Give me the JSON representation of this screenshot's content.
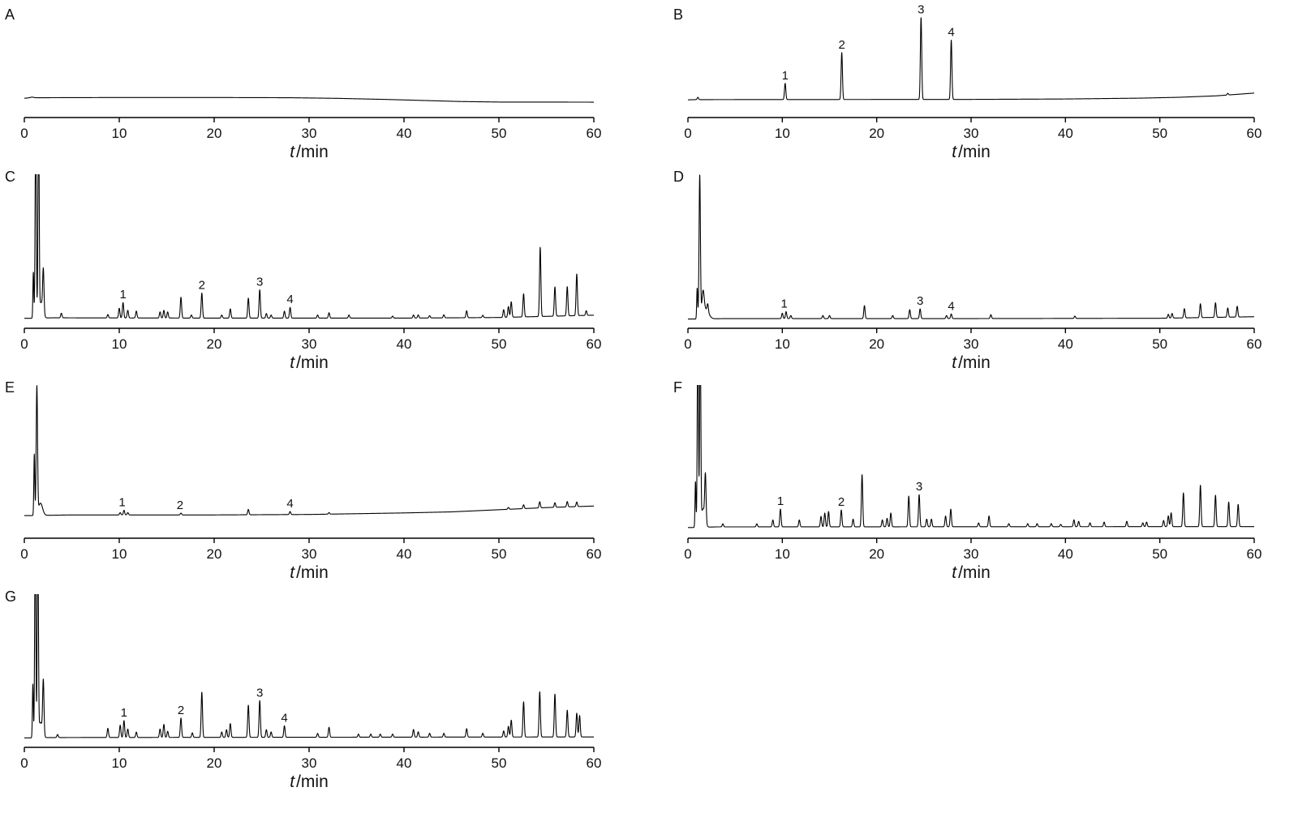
{
  "chart_data": [
    {
      "type": "line",
      "panel_label": "A",
      "xlabel_symbol": "t",
      "xlabel_unit": "/min",
      "xlim": [
        0,
        60
      ],
      "ylim": [
        0,
        100
      ],
      "x_ticks": [
        0,
        10,
        20,
        30,
        40,
        50,
        60
      ],
      "baseline": [
        [
          0,
          18.3
        ],
        [
          0.4,
          18.6
        ],
        [
          0.8,
          19.4
        ],
        [
          1.2,
          18.8
        ],
        [
          10,
          19.0
        ],
        [
          20,
          19.0
        ],
        [
          28,
          18.8
        ],
        [
          33,
          18.2
        ],
        [
          38,
          17.2
        ],
        [
          42,
          16.2
        ],
        [
          46,
          15.2
        ],
        [
          50,
          14.7
        ],
        [
          60,
          14.6
        ]
      ],
      "peaks": [],
      "peak_labels": []
    },
    {
      "type": "line",
      "panel_label": "B",
      "xlabel_symbol": "t",
      "xlabel_unit": "/min",
      "xlim": [
        0,
        60
      ],
      "ylim": [
        0,
        100
      ],
      "x_ticks": [
        0,
        10,
        20,
        30,
        40,
        50,
        60
      ],
      "baseline": [
        [
          0,
          16.8
        ],
        [
          1,
          17
        ],
        [
          30,
          17.2
        ],
        [
          40,
          17.6
        ],
        [
          48,
          18.4
        ],
        [
          52,
          19.2
        ],
        [
          56,
          20.6
        ],
        [
          60,
          23.2
        ]
      ],
      "peaks": [
        [
          1.05,
          2.2
        ],
        [
          10.3,
          15.4
        ],
        [
          16.3,
          44.6
        ],
        [
          24.7,
          77.7
        ],
        [
          27.9,
          56.2
        ],
        [
          57.2,
          1.6
        ]
      ],
      "peak_labels": [
        {
          "label": "1",
          "t": 10.3
        },
        {
          "label": "2",
          "t": 16.3
        },
        {
          "label": "3",
          "t": 24.7
        },
        {
          "label": "4",
          "t": 27.9
        }
      ]
    },
    {
      "type": "line",
      "panel_label": "C",
      "xlabel_symbol": "t",
      "xlabel_unit": "/min",
      "xlim": [
        0,
        60
      ],
      "ylim": [
        0,
        100
      ],
      "x_ticks": [
        0,
        10,
        20,
        30,
        40,
        50,
        60
      ],
      "baseline": [
        [
          0,
          6.5
        ],
        [
          0.9,
          6.5
        ],
        [
          3,
          6.8
        ],
        [
          20,
          6.6
        ],
        [
          40,
          6.6
        ],
        [
          50,
          7
        ],
        [
          60,
          8.5
        ]
      ],
      "peaks": [
        [
          0.95,
          30,
          0.05
        ],
        [
          1.2,
          140,
          0.06
        ],
        [
          1.5,
          140,
          0.06
        ],
        [
          1.75,
          10,
          0.2
        ],
        [
          2.0,
          28
        ],
        [
          3.9,
          3
        ],
        [
          8.8,
          2.2
        ],
        [
          10.0,
          6.3
        ],
        [
          10.4,
          10
        ],
        [
          10.9,
          5
        ],
        [
          11.8,
          4.5
        ],
        [
          14.3,
          4
        ],
        [
          14.7,
          5
        ],
        [
          15.1,
          4
        ],
        [
          16.5,
          13.5
        ],
        [
          17.6,
          2
        ],
        [
          18.7,
          16.3
        ],
        [
          20.8,
          2
        ],
        [
          21.7,
          6
        ],
        [
          23.6,
          13
        ],
        [
          24.8,
          18.4
        ],
        [
          25.5,
          3
        ],
        [
          26.0,
          2
        ],
        [
          27.4,
          4.5
        ],
        [
          28.0,
          7
        ],
        [
          30.9,
          2
        ],
        [
          32.1,
          3.5
        ],
        [
          34.2,
          2
        ],
        [
          38.8,
          1.3
        ],
        [
          41.0,
          2
        ],
        [
          41.5,
          2
        ],
        [
          42.7,
          1.5
        ],
        [
          44.2,
          2
        ],
        [
          46.6,
          4.5
        ],
        [
          48.3,
          1.5
        ],
        [
          50.5,
          5
        ],
        [
          51.0,
          7
        ],
        [
          51.3,
          10
        ],
        [
          52.6,
          15
        ],
        [
          54.35,
          45
        ],
        [
          55.9,
          19
        ],
        [
          57.2,
          19
        ],
        [
          58.2,
          27
        ],
        [
          59.2,
          3
        ]
      ],
      "peak_labels": [
        {
          "label": "1",
          "t": 10.4
        },
        {
          "label": "2",
          "t": 18.7
        },
        {
          "label": "3",
          "t": 24.8
        },
        {
          "label": "4",
          "t": 28.0
        }
      ]
    },
    {
      "type": "line",
      "panel_label": "D",
      "xlabel_symbol": "t",
      "xlabel_unit": "/min",
      "xlim": [
        0,
        60
      ],
      "ylim": [
        0,
        100
      ],
      "x_ticks": [
        0,
        10,
        20,
        30,
        40,
        50,
        60
      ],
      "baseline": [
        [
          0,
          6
        ],
        [
          0.9,
          6
        ],
        [
          4,
          6.3
        ],
        [
          30,
          6.3
        ],
        [
          50,
          6.5
        ],
        [
          60,
          7.5
        ]
      ],
      "peaks": [
        [
          0.98,
          20,
          0.05
        ],
        [
          1.25,
          93,
          0.07
        ],
        [
          1.6,
          15,
          0.12
        ],
        [
          1.9,
          6,
          0.3
        ],
        [
          2.1,
          5
        ],
        [
          10.0,
          3.5
        ],
        [
          10.4,
          4.5
        ],
        [
          10.9,
          2
        ],
        [
          14.3,
          2
        ],
        [
          15.0,
          2
        ],
        [
          18.7,
          8.4
        ],
        [
          21.7,
          2
        ],
        [
          23.5,
          5.8
        ],
        [
          24.6,
          6.3
        ],
        [
          27.4,
          2
        ],
        [
          27.9,
          3
        ],
        [
          32.1,
          2.5
        ],
        [
          41.0,
          1.5
        ],
        [
          50.9,
          2.5
        ],
        [
          51.3,
          3
        ],
        [
          52.6,
          6
        ],
        [
          54.3,
          9
        ],
        [
          55.9,
          9.5
        ],
        [
          57.2,
          6
        ],
        [
          58.2,
          7
        ]
      ],
      "peak_labels": [
        {
          "label": "1",
          "t": 10.2
        },
        {
          "label": "3",
          "t": 24.6
        },
        {
          "label": "4",
          "t": 27.9
        }
      ]
    },
    {
      "type": "line",
      "panel_label": "E",
      "xlabel_symbol": "t",
      "xlabel_unit": "/min",
      "xlim": [
        0,
        60
      ],
      "ylim": [
        0,
        100
      ],
      "x_ticks": [
        0,
        10,
        20,
        30,
        40,
        50,
        60
      ],
      "baseline": [
        [
          0,
          14.8
        ],
        [
          0.9,
          14.8
        ],
        [
          5,
          15.2
        ],
        [
          20,
          15.2
        ],
        [
          30,
          15.5
        ],
        [
          40,
          16.5
        ],
        [
          45,
          17.2
        ],
        [
          50,
          18.6
        ],
        [
          55,
          20
        ],
        [
          60,
          21
        ]
      ],
      "peaks": [
        [
          1.05,
          40,
          0.05
        ],
        [
          1.32,
          83,
          0.07
        ],
        [
          1.7,
          8,
          0.22
        ],
        [
          10.1,
          1.5
        ],
        [
          10.5,
          3
        ],
        [
          10.9,
          1.5
        ],
        [
          16.5,
          1.2
        ],
        [
          23.6,
          3.5
        ],
        [
          28.0,
          2
        ],
        [
          32.1,
          1
        ],
        [
          51.0,
          1.2
        ],
        [
          52.6,
          2.5
        ],
        [
          54.3,
          4
        ],
        [
          55.9,
          3
        ],
        [
          57.2,
          3.5
        ],
        [
          58.2,
          3
        ]
      ],
      "peak_labels": [
        {
          "label": "1",
          "t": 10.3
        },
        {
          "label": "2",
          "t": 16.4
        },
        {
          "label": "4",
          "t": 28.0
        }
      ]
    },
    {
      "type": "line",
      "panel_label": "F",
      "xlabel_symbol": "t",
      "xlabel_unit": "/min",
      "xlim": [
        0,
        60
      ],
      "ylim": [
        0,
        100
      ],
      "x_ticks": [
        0,
        10,
        20,
        30,
        40,
        50,
        60
      ],
      "baseline": [
        [
          0,
          7
        ],
        [
          1,
          7
        ],
        [
          3,
          7.4
        ],
        [
          60,
          7.6
        ]
      ],
      "peaks": [
        [
          0.8,
          30,
          0.05
        ],
        [
          1.05,
          140,
          0.06
        ],
        [
          1.3,
          140,
          0.06
        ],
        [
          1.6,
          12,
          0.2
        ],
        [
          1.85,
          30
        ],
        [
          3.7,
          2
        ],
        [
          7.3,
          2
        ],
        [
          9.0,
          4.5
        ],
        [
          9.8,
          11.6
        ],
        [
          11.8,
          4.5
        ],
        [
          14.1,
          6.8
        ],
        [
          14.5,
          9
        ],
        [
          14.9,
          10
        ],
        [
          16.25,
          11
        ],
        [
          17.5,
          5
        ],
        [
          18.45,
          34
        ],
        [
          20.6,
          4.5
        ],
        [
          21.1,
          5.5
        ],
        [
          21.5,
          9
        ],
        [
          23.4,
          20
        ],
        [
          24.5,
          21
        ],
        [
          25.3,
          5
        ],
        [
          25.8,
          5
        ],
        [
          27.3,
          7
        ],
        [
          27.85,
          11.5
        ],
        [
          30.8,
          2.5
        ],
        [
          31.9,
          7
        ],
        [
          34,
          2
        ],
        [
          36,
          2
        ],
        [
          37,
          2
        ],
        [
          38.5,
          2
        ],
        [
          39.5,
          1.5
        ],
        [
          40.9,
          4.5
        ],
        [
          41.4,
          3.5
        ],
        [
          42.6,
          2.5
        ],
        [
          44.1,
          3
        ],
        [
          46.5,
          3.5
        ],
        [
          48.2,
          2.5
        ],
        [
          48.6,
          3
        ],
        [
          50.4,
          4
        ],
        [
          50.9,
          7
        ],
        [
          51.2,
          9
        ],
        [
          52.5,
          22
        ],
        [
          54.3,
          27
        ],
        [
          55.9,
          20.5
        ],
        [
          57.3,
          16
        ],
        [
          58.3,
          14.5
        ]
      ],
      "peak_labels": [
        {
          "label": "1",
          "t": 9.8
        },
        {
          "label": "2",
          "t": 16.25
        },
        {
          "label": "3",
          "t": 24.5
        }
      ]
    },
    {
      "type": "line",
      "panel_label": "G",
      "xlabel_symbol": "t",
      "xlabel_unit": "/min",
      "xlim": [
        0,
        60
      ],
      "ylim": [
        0,
        100
      ],
      "x_ticks": [
        0,
        10,
        20,
        30,
        40,
        50,
        60
      ],
      "baseline": [
        [
          0,
          6.2
        ],
        [
          0.9,
          6.2
        ],
        [
          3,
          6.4
        ],
        [
          60,
          6.8
        ]
      ],
      "peaks": [
        [
          0.9,
          35,
          0.05
        ],
        [
          1.15,
          140,
          0.06
        ],
        [
          1.42,
          140,
          0.06
        ],
        [
          1.7,
          10,
          0.2
        ],
        [
          2.0,
          35
        ],
        [
          3.5,
          2
        ],
        [
          8.8,
          6
        ],
        [
          10.1,
          8
        ],
        [
          10.5,
          11
        ],
        [
          10.9,
          5.5
        ],
        [
          11.8,
          3.5
        ],
        [
          14.3,
          5.5
        ],
        [
          14.7,
          8.5
        ],
        [
          15.1,
          4
        ],
        [
          16.5,
          12.6
        ],
        [
          17.7,
          3
        ],
        [
          18.7,
          29.5
        ],
        [
          20.8,
          3.5
        ],
        [
          21.3,
          5
        ],
        [
          21.7,
          9
        ],
        [
          23.6,
          21
        ],
        [
          24.8,
          24
        ],
        [
          25.5,
          5
        ],
        [
          26.0,
          3.5
        ],
        [
          27.4,
          7.5
        ],
        [
          30.9,
          2.5
        ],
        [
          32.1,
          6.5
        ],
        [
          35.2,
          2
        ],
        [
          36.5,
          2
        ],
        [
          37.5,
          2
        ],
        [
          38.8,
          2
        ],
        [
          41.0,
          5
        ],
        [
          41.5,
          3.5
        ],
        [
          42.7,
          2.5
        ],
        [
          44.2,
          2.5
        ],
        [
          46.6,
          5.5
        ],
        [
          48.3,
          2.5
        ],
        [
          50.5,
          4
        ],
        [
          51.0,
          7
        ],
        [
          51.3,
          11
        ],
        [
          52.6,
          23
        ],
        [
          54.3,
          29.5
        ],
        [
          55.9,
          28
        ],
        [
          57.2,
          17.5
        ],
        [
          58.2,
          15.5
        ],
        [
          58.5,
          14
        ]
      ],
      "peak_labels": [
        {
          "label": "1",
          "t": 10.5
        },
        {
          "label": "2",
          "t": 16.5
        },
        {
          "label": "3",
          "t": 24.8
        },
        {
          "label": "4",
          "t": 27.4
        }
      ]
    }
  ]
}
